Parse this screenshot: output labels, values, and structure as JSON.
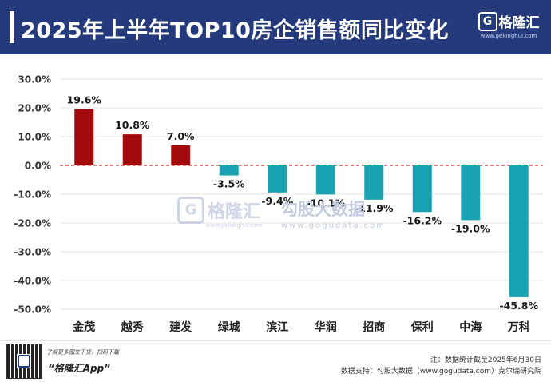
{
  "header": {
    "title": "2025年上半年TOP10房企销售额同比变化",
    "brand_name": "格隆汇",
    "brand_url": "www.gelonghui.com"
  },
  "watermark": {
    "brand_name": "格隆汇",
    "brand_url": "www.gelonghui.com",
    "partner_name": "勾股大数据",
    "partner_url": "www.gogudata.com"
  },
  "footer": {
    "qr_tip": "了解更多图文干货，扫码下载",
    "app_name": "“格隆汇App”",
    "note_line1": "注：数据统计截至2025年6月30日",
    "note_line2": "数据支持：勾股大数据（www.gogudata.com）克尔瑞研究院"
  },
  "chart_data": {
    "type": "bar",
    "categories": [
      "金茂",
      "越秀",
      "建发",
      "绿城",
      "滨江",
      "华润",
      "招商",
      "保利",
      "中海",
      "万科"
    ],
    "values": [
      19.6,
      10.8,
      7.0,
      -3.5,
      -9.4,
      -10.1,
      -11.9,
      -16.2,
      -19.0,
      -45.8
    ],
    "value_labels": [
      "19.6%",
      "10.8%",
      "7.0%",
      "-3.5%",
      "-9.4%",
      "-10.1%",
      "-11.9%",
      "-16.2%",
      "-19.0%",
      "-45.8%"
    ],
    "ylim": [
      -50,
      30
    ],
    "yticks": [
      30,
      20,
      10,
      0,
      -10,
      -20,
      -30,
      -40,
      -50
    ],
    "ytick_labels": [
      "30.0%",
      "20.0%",
      "10.0%",
      "0.0%",
      "-10.0%",
      "-20.0%",
      "-30.0%",
      "-40.0%",
      "-50.0%"
    ],
    "grid": true,
    "zero_line_style": "dashed",
    "colors": {
      "positive": "#a30a0c",
      "negative": "#1aa3b3",
      "grid": "#e5e5e5",
      "zero": "#c00000"
    }
  }
}
